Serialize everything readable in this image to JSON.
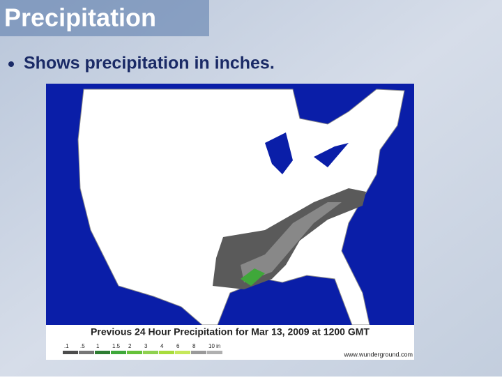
{
  "slide": {
    "title": "Precipitation",
    "bullets": [
      "Shows precipitation in inches."
    ]
  },
  "map": {
    "caption": "Previous 24 Hour Precipitation for Mar 13, 2009 at 1200 GMT",
    "legend": [
      {
        "label": ".1",
        "color": "#4d4d4d"
      },
      {
        "label": ".5",
        "color": "#777777"
      },
      {
        "label": "1",
        "color": "#2e7d32"
      },
      {
        "label": "1.5",
        "color": "#3fa83a"
      },
      {
        "label": "2",
        "color": "#66c23a"
      },
      {
        "label": "3",
        "color": "#8fd14f"
      },
      {
        "label": "4",
        "color": "#a8dc3c"
      },
      {
        "label": "6",
        "color": "#c6e85a"
      },
      {
        "label": "8",
        "color": "#9a9a9a"
      },
      {
        "label": "10 in",
        "color": "#b0b0b0"
      }
    ],
    "credit": "www.wunderground.com"
  }
}
